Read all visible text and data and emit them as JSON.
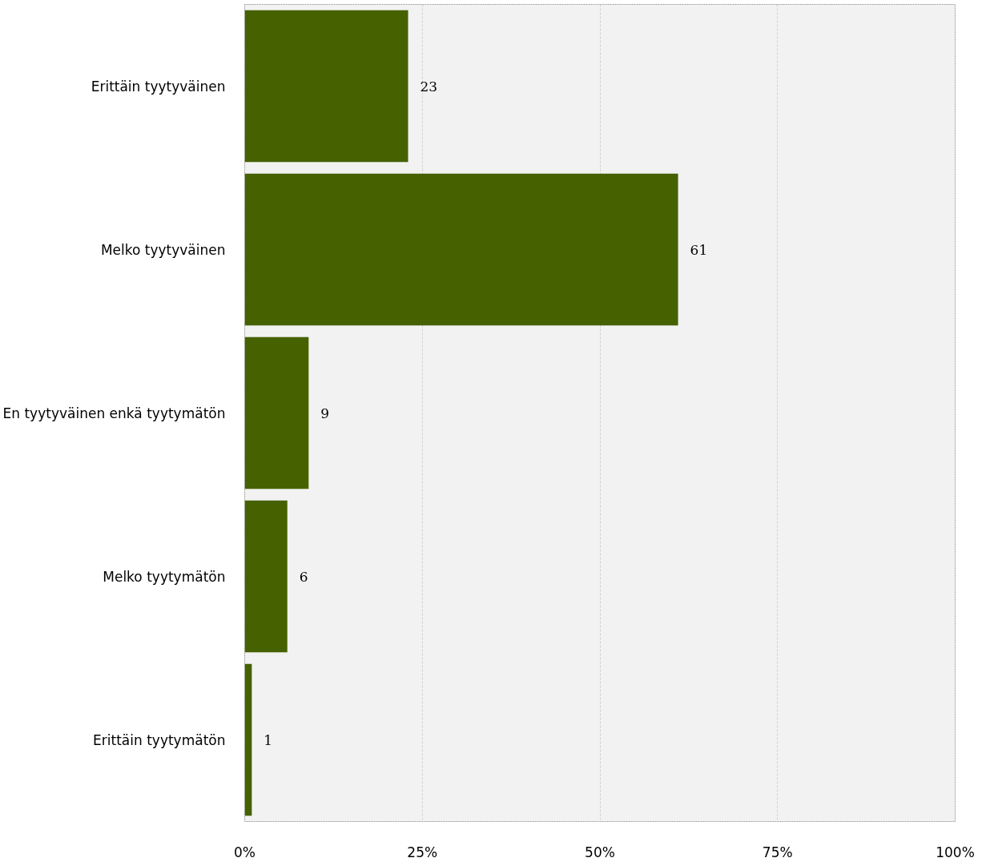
{
  "chart_data": {
    "type": "bar",
    "orientation": "horizontal",
    "categories": [
      "Erittäin tyytyväinen",
      "Melko tyytyväinen",
      "En tyytyväinen enkä tyytymätön",
      "Melko tyytymätön",
      "Erittäin tyytymätön"
    ],
    "values": [
      23,
      61,
      9,
      6,
      1
    ],
    "color": "#466200",
    "xlim": [
      0,
      100
    ],
    "xticks": [
      {
        "value": 0,
        "label": "0%"
      },
      {
        "value": 25,
        "label": "25%"
      },
      {
        "value": 50,
        "label": "50%"
      },
      {
        "value": 75,
        "label": "75%"
      },
      {
        "value": 100,
        "label": "100%"
      }
    ],
    "grid": "x",
    "data_labels": true
  }
}
